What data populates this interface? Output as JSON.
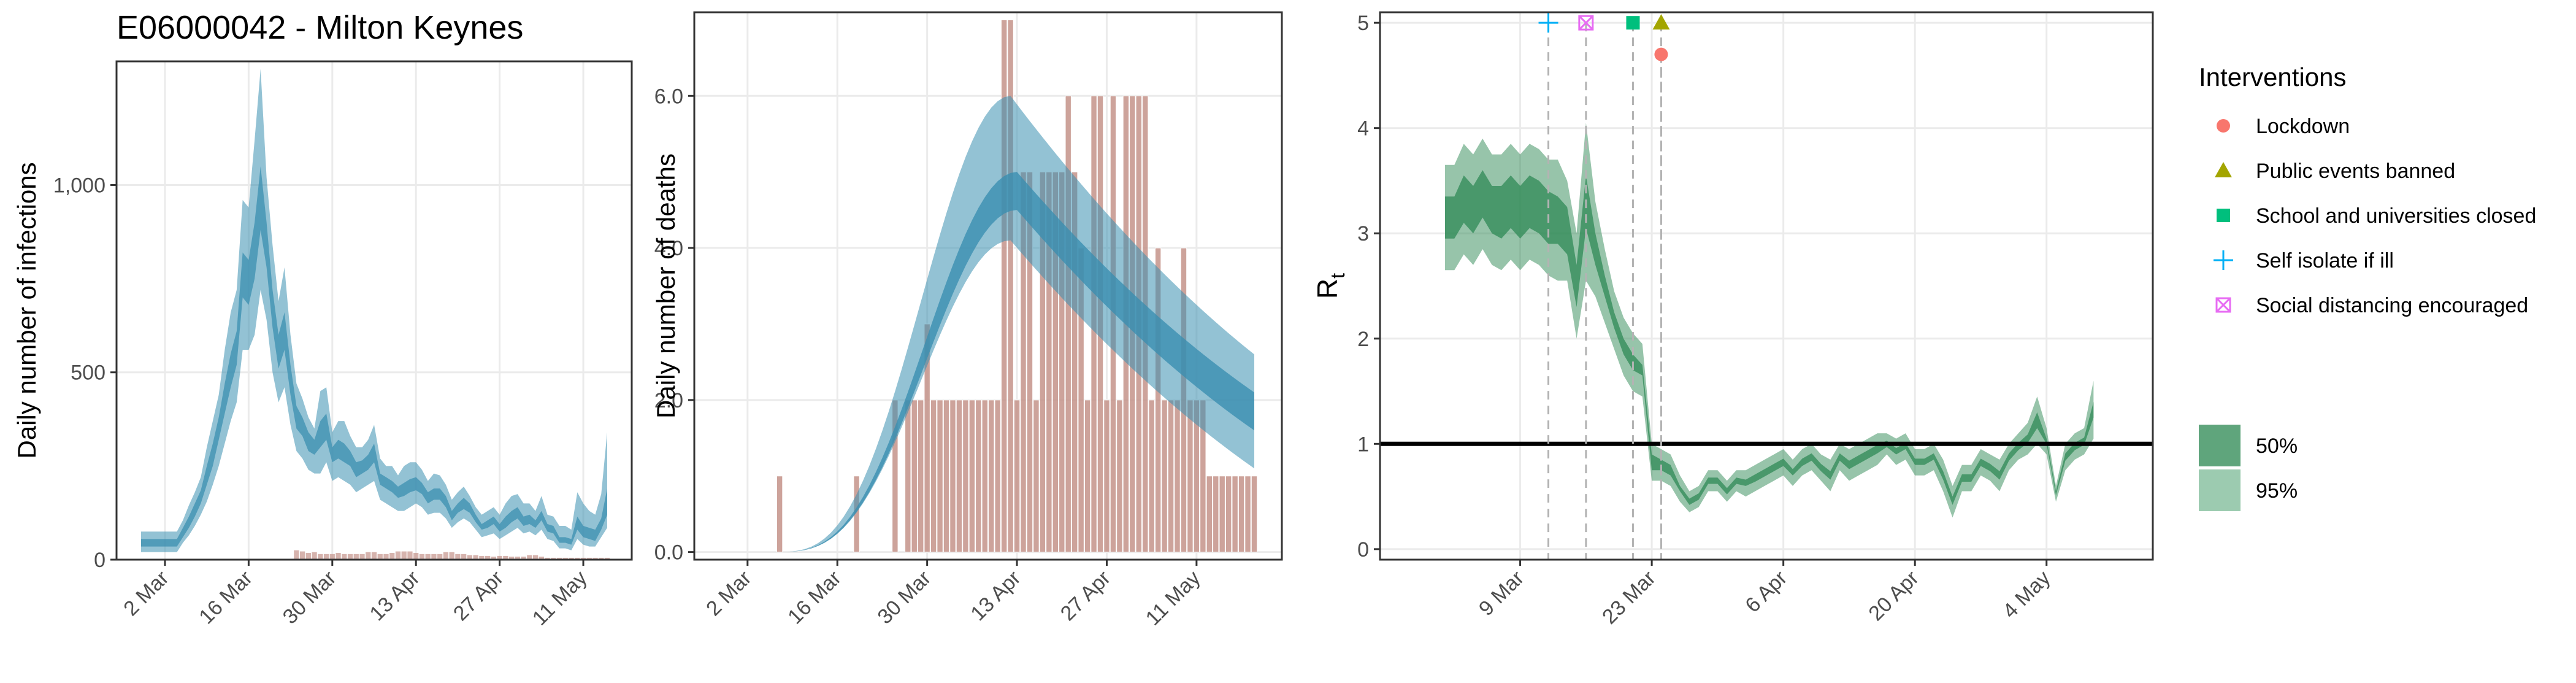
{
  "page": {
    "title": "E06000042 - Milton Keynes"
  },
  "colors": {
    "infections_band": "#3b8fb0",
    "deaths_band": "#3b8fb0",
    "observed_bars": "#c4938a",
    "rt_band": "#2f8a55",
    "legend_50": "#5fa57c",
    "legend_95": "#9ccbb0",
    "lockdown": "#f8766d",
    "public_events": "#a3a500",
    "schools": "#00bf7d",
    "self_isolate": "#00b0f6",
    "social_distancing": "#e76bf3"
  },
  "chart_data": [
    {
      "type": "area",
      "panel": "infections",
      "title": "",
      "ylabel": "Daily number of infections",
      "xlabel": "",
      "x_ticks": [
        "2 Mar",
        "16 Mar",
        "30 Mar",
        "13 Apr",
        "27 Apr",
        "11 May"
      ],
      "y_ticks": [
        "0",
        "500",
        "1,000"
      ],
      "ylim": [
        0,
        1330
      ],
      "grid": true,
      "x": [
        "2020-02-27",
        "2020-02-28",
        "2020-02-29",
        "2020-03-01",
        "2020-03-02",
        "2020-03-03",
        "2020-03-04",
        "2020-03-05",
        "2020-03-06",
        "2020-03-07",
        "2020-03-08",
        "2020-03-09",
        "2020-03-10",
        "2020-03-11",
        "2020-03-12",
        "2020-03-13",
        "2020-03-14",
        "2020-03-15",
        "2020-03-16",
        "2020-03-17",
        "2020-03-18",
        "2020-03-19",
        "2020-03-20",
        "2020-03-21",
        "2020-03-22",
        "2020-03-23",
        "2020-03-24",
        "2020-03-25",
        "2020-03-26",
        "2020-03-27",
        "2020-03-28",
        "2020-03-29",
        "2020-03-30",
        "2020-03-31",
        "2020-04-01",
        "2020-04-02",
        "2020-04-03",
        "2020-04-04",
        "2020-04-05",
        "2020-04-06",
        "2020-04-07",
        "2020-04-08",
        "2020-04-09",
        "2020-04-10",
        "2020-04-11",
        "2020-04-12",
        "2020-04-13",
        "2020-04-14",
        "2020-04-15",
        "2020-04-16",
        "2020-04-17",
        "2020-04-18",
        "2020-04-19",
        "2020-04-20",
        "2020-04-21",
        "2020-04-22",
        "2020-04-23",
        "2020-04-24",
        "2020-04-25",
        "2020-04-26",
        "2020-04-27",
        "2020-04-28",
        "2020-04-29",
        "2020-04-30",
        "2020-05-01",
        "2020-05-02",
        "2020-05-03",
        "2020-05-04",
        "2020-05-05",
        "2020-05-06",
        "2020-05-07",
        "2020-05-08",
        "2020-05-09",
        "2020-05-10",
        "2020-05-11",
        "2020-05-12",
        "2020-05-13",
        "2020-05-14",
        "2020-05-15"
      ],
      "series": [
        {
          "band": "95%",
          "lower": [
            20,
            20,
            20,
            20,
            20,
            20,
            20,
            45,
            65,
            90,
            120,
            155,
            200,
            250,
            310,
            370,
            420,
            560,
            560,
            600,
            720,
            640,
            500,
            420,
            460,
            360,
            290,
            270,
            240,
            230,
            230,
            260,
            210,
            220,
            210,
            200,
            180,
            190,
            200,
            210,
            160,
            150,
            140,
            130,
            130,
            140,
            150,
            140,
            120,
            125,
            125,
            110,
            85,
            100,
            110,
            100,
            80,
            60,
            65,
            70,
            55,
            65,
            75,
            85,
            70,
            75,
            65,
            80,
            55,
            50,
            30,
            30,
            25,
            55,
            40,
            35,
            35,
            60,
            85
          ],
          "upper": [
            75,
            75,
            75,
            75,
            75,
            75,
            75,
            105,
            145,
            180,
            220,
            300,
            370,
            440,
            560,
            660,
            720,
            960,
            940,
            1120,
            1310,
            1020,
            840,
            690,
            780,
            600,
            470,
            430,
            380,
            350,
            450,
            460,
            340,
            370,
            370,
            330,
            300,
            300,
            320,
            360,
            270,
            250,
            250,
            225,
            250,
            260,
            260,
            240,
            210,
            230,
            225,
            200,
            160,
            180,
            195,
            170,
            140,
            120,
            130,
            140,
            120,
            150,
            170,
            175,
            150,
            150,
            130,
            170,
            120,
            115,
            90,
            90,
            80,
            180,
            150,
            130,
            120,
            175,
            340
          ]
        },
        {
          "band": "50%",
          "lower": [
            35,
            35,
            35,
            35,
            35,
            35,
            35,
            60,
            85,
            115,
            150,
            200,
            250,
            320,
            390,
            460,
            520,
            700,
            680,
            750,
            880,
            780,
            620,
            510,
            560,
            440,
            350,
            330,
            290,
            280,
            300,
            320,
            260,
            270,
            260,
            250,
            220,
            230,
            240,
            260,
            200,
            190,
            180,
            165,
            170,
            180,
            185,
            175,
            150,
            160,
            160,
            140,
            105,
            125,
            135,
            125,
            100,
            80,
            85,
            95,
            75,
            85,
            100,
            110,
            90,
            95,
            85,
            105,
            75,
            70,
            45,
            45,
            40,
            80,
            60,
            55,
            50,
            80,
            120
          ],
          "upper": [
            55,
            55,
            55,
            55,
            55,
            55,
            55,
            85,
            115,
            150,
            185,
            250,
            310,
            380,
            470,
            550,
            610,
            820,
            800,
            900,
            1050,
            900,
            720,
            600,
            660,
            520,
            410,
            380,
            340,
            320,
            370,
            390,
            300,
            320,
            310,
            290,
            260,
            265,
            280,
            310,
            230,
            220,
            210,
            195,
            205,
            215,
            220,
            205,
            180,
            190,
            190,
            170,
            130,
            150,
            165,
            150,
            120,
            95,
            105,
            115,
            95,
            115,
            130,
            140,
            115,
            120,
            105,
            130,
            95,
            90,
            60,
            60,
            55,
            115,
            90,
            85,
            80,
            110,
            190
          ]
        }
      ],
      "observed": [
        0,
        0,
        0,
        0,
        0,
        0,
        0,
        0,
        0,
        0,
        0,
        0,
        0,
        0,
        0,
        0,
        0,
        0,
        0,
        0,
        0,
        0,
        0,
        0,
        0,
        0,
        0,
        0,
        0,
        0,
        0,
        0,
        0,
        0,
        0,
        0,
        0,
        0,
        0,
        0,
        0,
        0,
        0,
        0,
        0,
        0,
        0,
        0,
        0,
        0,
        0,
        0,
        0,
        0,
        0,
        0,
        0,
        0,
        0,
        0,
        0,
        0,
        0,
        0,
        0,
        0,
        0,
        0,
        0,
        0,
        0,
        0,
        0,
        0,
        0,
        0,
        0,
        0,
        0
      ],
      "observed_small": [
        0,
        0,
        0,
        0,
        0,
        0,
        0,
        0,
        0,
        0,
        0,
        0,
        0,
        0,
        0,
        0,
        0,
        0,
        0,
        0,
        0,
        0,
        0,
        0,
        0,
        0,
        25,
        22,
        18,
        20,
        15,
        15,
        15,
        18,
        15,
        15,
        15,
        15,
        20,
        20,
        15,
        15,
        18,
        22,
        22,
        22,
        18,
        15,
        15,
        15,
        15,
        20,
        20,
        15,
        15,
        12,
        12,
        10,
        10,
        8,
        10,
        10,
        8,
        8,
        8,
        12,
        12,
        8,
        5,
        5,
        5,
        5,
        5,
        5,
        5,
        5,
        5,
        5,
        5
      ]
    },
    {
      "type": "area",
      "panel": "deaths",
      "title": "",
      "ylabel": "Daily number of deaths",
      "xlabel": "",
      "x_ticks": [
        "2 Mar",
        "16 Mar",
        "30 Mar",
        "13 Apr",
        "27 Apr",
        "11 May"
      ],
      "y_ticks": [
        "0.0",
        "2.0",
        "4.0",
        "6.0"
      ],
      "ylim": [
        -0.1,
        7.1
      ],
      "grid": true,
      "bars": [
        0,
        0,
        0,
        0,
        0,
        0,
        0,
        0,
        0,
        1,
        0,
        0,
        0,
        0,
        0,
        0,
        0,
        0,
        0,
        0,
        0,
        1,
        0,
        0,
        0,
        0,
        0,
        2,
        0,
        2,
        2,
        2,
        3,
        2,
        2,
        2,
        2,
        2,
        2,
        2,
        2,
        2,
        2,
        2,
        7,
        7,
        2,
        5,
        5,
        2,
        5,
        5,
        5,
        5,
        6,
        5,
        4,
        2,
        6,
        6,
        2,
        6,
        2,
        6,
        6,
        6,
        6,
        2,
        4,
        2,
        2,
        2,
        4,
        2,
        2,
        2,
        1,
        1,
        1,
        1,
        1,
        1,
        1,
        1
      ],
      "bars_start": "2020-02-27",
      "series": [
        {
          "band": "95%",
          "peak": 6.0,
          "peak_day": "2020-04-12",
          "lower_peak": 4.1,
          "end_upper": 2.6,
          "end_lower": 1.1
        },
        {
          "band": "50%",
          "peak": 5.0,
          "peak_day": "2020-04-13",
          "lower_peak": 4.5,
          "end_upper": 2.1,
          "end_lower": 1.6
        }
      ]
    },
    {
      "type": "line",
      "panel": "rt",
      "title": "",
      "ylabel": "R",
      "ylabel_sub": "t",
      "xlabel": "",
      "x_ticks": [
        "9 Mar",
        "23 Mar",
        "6 Apr",
        "20 Apr",
        "4 May"
      ],
      "y_ticks": [
        "0",
        "1",
        "2",
        "3",
        "4",
        "5"
      ],
      "ylim": [
        -0.1,
        5.1
      ],
      "grid": true,
      "reference_line": 1,
      "x_start": "2020-02-27",
      "series": [
        {
          "band": "95%",
          "lower": [
            2.65,
            2.65,
            2.8,
            2.7,
            2.85,
            2.7,
            2.65,
            2.75,
            2.65,
            2.75,
            2.7,
            2.6,
            2.55,
            2.55,
            2.0,
            2.55,
            2.4,
            2.15,
            1.9,
            1.65,
            1.5,
            1.45,
            0.65,
            0.65,
            0.6,
            0.45,
            0.35,
            0.4,
            0.55,
            0.55,
            0.45,
            0.55,
            0.5,
            0.55,
            0.6,
            0.65,
            0.7,
            0.6,
            0.7,
            0.75,
            0.65,
            0.55,
            0.75,
            0.65,
            0.7,
            0.75,
            0.8,
            0.9,
            0.8,
            0.85,
            0.7,
            0.7,
            0.75,
            0.55,
            0.3,
            0.55,
            0.55,
            0.7,
            0.65,
            0.55,
            0.75,
            0.85,
            0.9,
            1.0,
            0.9,
            0.45,
            0.75,
            0.85,
            0.9,
            1.05
          ],
          "upper": [
            3.65,
            3.65,
            3.85,
            3.75,
            3.9,
            3.75,
            3.75,
            3.85,
            3.75,
            3.85,
            3.8,
            3.7,
            3.7,
            3.5,
            3.0,
            4.05,
            3.3,
            2.85,
            2.45,
            2.2,
            2.05,
            1.95,
            1.0,
            0.95,
            0.9,
            0.7,
            0.55,
            0.6,
            0.75,
            0.75,
            0.65,
            0.75,
            0.75,
            0.8,
            0.85,
            0.9,
            0.95,
            0.85,
            0.95,
            1.0,
            0.9,
            0.85,
            1.0,
            0.95,
            1.0,
            1.05,
            1.1,
            1.1,
            1.05,
            1.1,
            0.95,
            0.95,
            1.0,
            0.85,
            0.6,
            0.8,
            0.8,
            0.95,
            0.9,
            0.85,
            1.0,
            1.1,
            1.2,
            1.45,
            1.15,
            0.6,
            1.0,
            1.1,
            1.15,
            1.6
          ]
        },
        {
          "band": "50%",
          "lower": [
            2.95,
            2.95,
            3.1,
            3.0,
            3.15,
            3.0,
            2.95,
            3.05,
            2.95,
            3.05,
            3.0,
            2.9,
            2.9,
            2.8,
            2.3,
            3.05,
            2.7,
            2.4,
            2.1,
            1.85,
            1.7,
            1.65,
            0.75,
            0.75,
            0.7,
            0.55,
            0.42,
            0.47,
            0.62,
            0.62,
            0.52,
            0.62,
            0.6,
            0.64,
            0.69,
            0.74,
            0.79,
            0.7,
            0.79,
            0.84,
            0.74,
            0.66,
            0.84,
            0.76,
            0.81,
            0.86,
            0.91,
            0.97,
            0.9,
            0.95,
            0.8,
            0.8,
            0.85,
            0.66,
            0.42,
            0.64,
            0.64,
            0.79,
            0.74,
            0.66,
            0.84,
            0.94,
            1.01,
            1.15,
            1.0,
            0.51,
            0.84,
            0.94,
            0.99,
            1.25
          ],
          "upper": [
            3.35,
            3.35,
            3.55,
            3.45,
            3.6,
            3.45,
            3.45,
            3.55,
            3.45,
            3.55,
            3.5,
            3.4,
            3.35,
            3.25,
            2.7,
            3.55,
            3.0,
            2.6,
            2.25,
            2.0,
            1.85,
            1.75,
            0.9,
            0.85,
            0.8,
            0.6,
            0.48,
            0.53,
            0.68,
            0.68,
            0.58,
            0.68,
            0.66,
            0.71,
            0.76,
            0.81,
            0.86,
            0.76,
            0.86,
            0.91,
            0.81,
            0.74,
            0.91,
            0.84,
            0.89,
            0.94,
            0.99,
            1.03,
            0.96,
            1.01,
            0.86,
            0.86,
            0.91,
            0.74,
            0.5,
            0.71,
            0.71,
            0.86,
            0.81,
            0.74,
            0.91,
            1.01,
            1.09,
            1.3,
            1.05,
            0.55,
            0.91,
            1.01,
            1.06,
            1.4
          ]
        }
      ],
      "interventions": [
        {
          "name": "Self isolate if ill",
          "date": "2020-03-12",
          "value": 5.0
        },
        {
          "name": "Social distancing encouraged",
          "date": "2020-03-16",
          "value": 5.0
        },
        {
          "name": "School and universities closed",
          "date": "2020-03-21",
          "value": 5.0
        },
        {
          "name": "Public events banned",
          "date": "2020-03-24",
          "value": 5.0
        },
        {
          "name": "Lockdown",
          "date": "2020-03-24",
          "value": 4.7
        }
      ]
    }
  ],
  "legend": {
    "interventions_title": "Interventions",
    "items": [
      {
        "label": "Lockdown",
        "shape": "circle",
        "color_key": "lockdown"
      },
      {
        "label": "Public events banned",
        "shape": "triangle",
        "color_key": "public_events"
      },
      {
        "label": "School and universities closed",
        "shape": "square",
        "color_key": "schools"
      },
      {
        "label": "Self isolate if ill",
        "shape": "plus",
        "color_key": "self_isolate"
      },
      {
        "label": "Social distancing encouraged",
        "shape": "boxx",
        "color_key": "social_distancing"
      }
    ],
    "bands": [
      {
        "label": "50%",
        "color_key": "legend_50"
      },
      {
        "label": "95%",
        "color_key": "legend_95"
      }
    ]
  }
}
